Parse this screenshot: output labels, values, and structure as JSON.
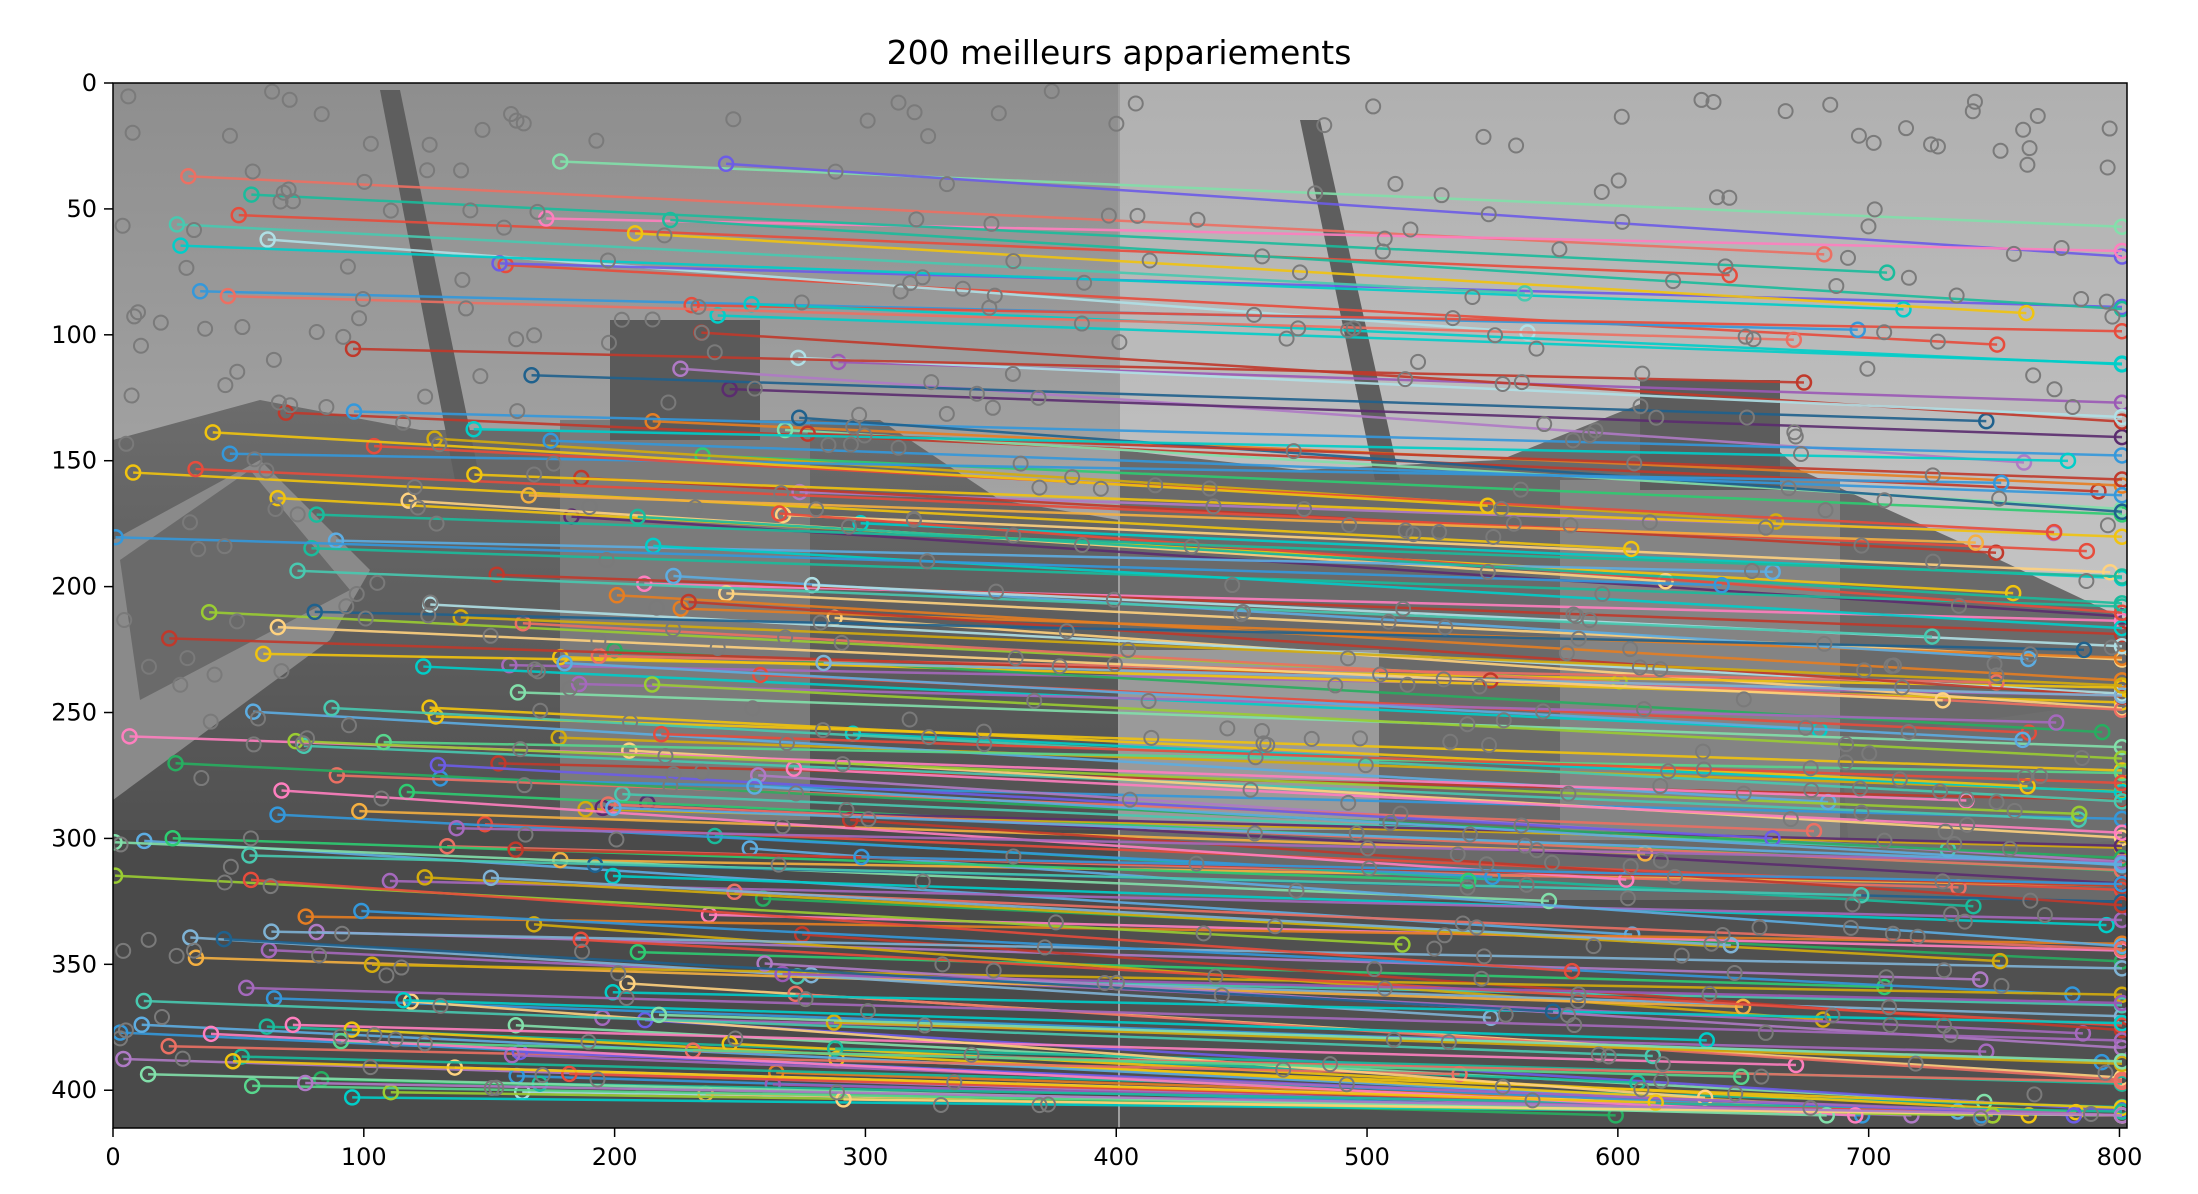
{
  "figure": {
    "title": "200 meilleurs appariements",
    "x_ticks": [
      "0",
      "100",
      "200",
      "300",
      "400",
      "500",
      "600",
      "700",
      "800"
    ],
    "y_ticks": [
      "0",
      "50",
      "100",
      "150",
      "200",
      "250",
      "300",
      "350",
      "400"
    ],
    "x_tick_values": [
      0,
      100,
      200,
      300,
      400,
      500,
      600,
      700,
      800
    ],
    "y_tick_values": [
      0,
      50,
      100,
      150,
      200,
      250,
      300,
      350,
      400
    ],
    "x_range": [
      0,
      803
    ],
    "y_range": [
      0,
      415
    ],
    "image_split_x": 401,
    "content": "grayscale side-by-side photos of a coastal lighthouse with colored keypoint match lines"
  },
  "colors": {
    "frame": "#000000",
    "background": "#ffffff",
    "keypoint_unmatched": "#7a7a7a"
  }
}
